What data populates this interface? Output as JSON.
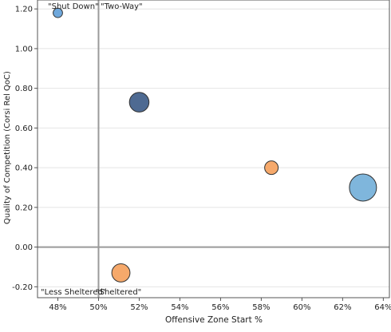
{
  "chart_data": {
    "type": "scatter",
    "title": "",
    "xlabel": "Offensive Zone Start %",
    "ylabel": "Quality of Competition (Corsi Rel QoC)",
    "xlim": [
      47.0,
      64.3
    ],
    "ylim": [
      -0.255,
      1.245
    ],
    "x_ticks": [
      48,
      50,
      52,
      54,
      56,
      58,
      60,
      62,
      64
    ],
    "x_tick_labels": [
      "48%",
      "50%",
      "52%",
      "54%",
      "56%",
      "58%",
      "60%",
      "62%",
      "64%"
    ],
    "y_ticks": [
      -0.2,
      0.0,
      0.2,
      0.4,
      0.6,
      0.8,
      1.0,
      1.2
    ],
    "y_tick_labels": [
      "-0.20",
      "0.00",
      "0.20",
      "0.40",
      "0.60",
      "0.80",
      "1.00",
      "1.20"
    ],
    "grid": "horizontal",
    "reference_lines": {
      "x": 50,
      "y": 0.0
    },
    "quadrant_labels": {
      "top_left": "\"Shut Down\"",
      "top_right": "\"Two-Way\"",
      "bottom_left": "\"Less Sheltered\"",
      "bottom_right": "\"Sheltered\""
    },
    "points": [
      {
        "x": 48.0,
        "y": 1.18,
        "size": 0.12,
        "color": "#6fa8dc"
      },
      {
        "x": 52.0,
        "y": 0.73,
        "size": 0.52,
        "color": "#4e6a92"
      },
      {
        "x": 58.5,
        "y": 0.4,
        "size": 0.25,
        "color": "#f6a96b"
      },
      {
        "x": 63.0,
        "y": 0.3,
        "size": 1.0,
        "color": "#7fb6dc"
      },
      {
        "x": 51.1,
        "y": -0.13,
        "size": 0.45,
        "color": "#f6a96b"
      }
    ],
    "colors": {
      "grid": "#e4e4e4",
      "reference_line": "#9a9a9a",
      "axis": "#555555",
      "point_stroke": "#333333"
    }
  }
}
